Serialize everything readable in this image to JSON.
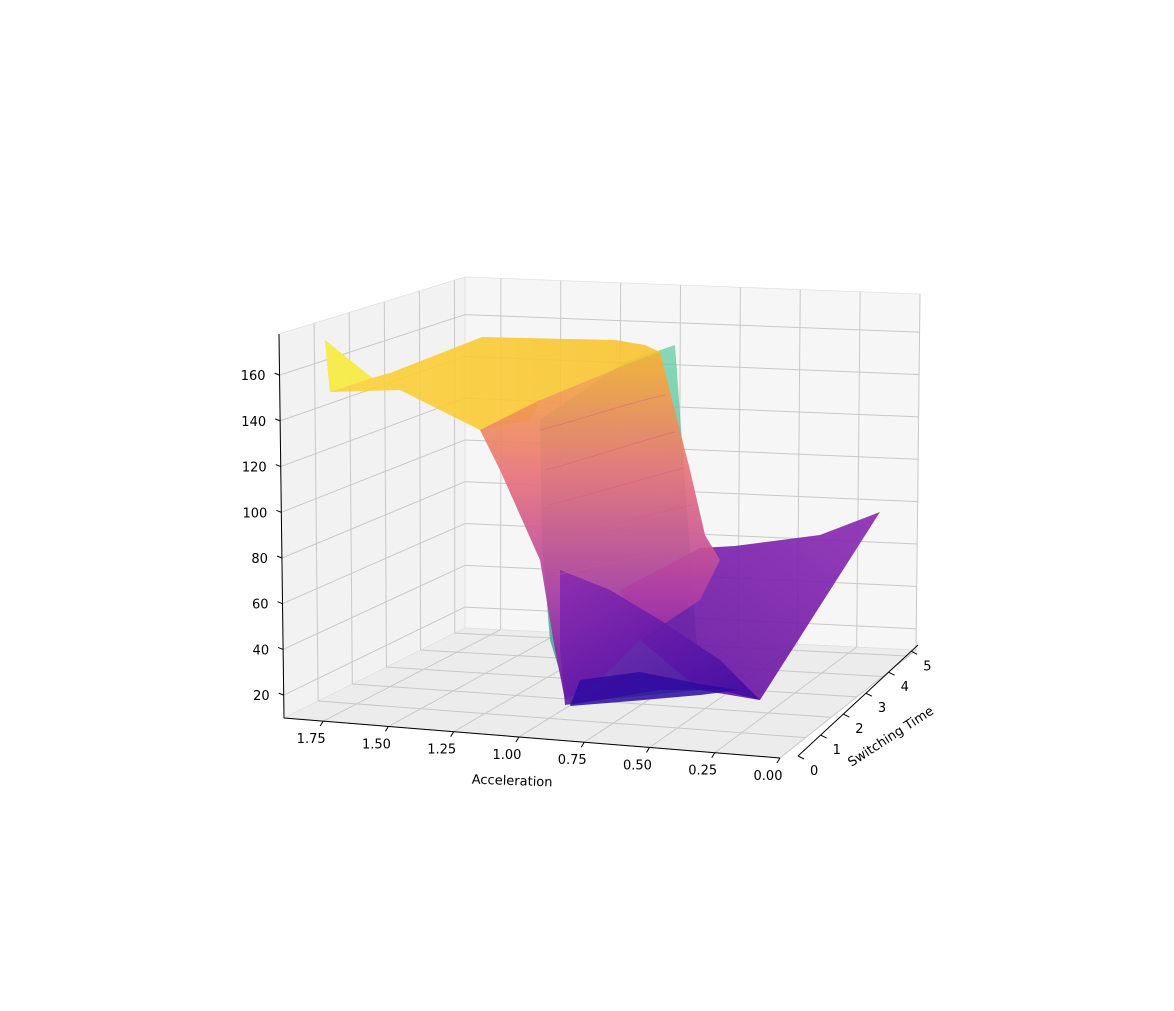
{
  "chart_data": {
    "type": "surface3d",
    "title": "",
    "xlabel": "Acceleration",
    "ylabel": "Switching Time",
    "zlabel": "",
    "x_ticks": [
      "0.00",
      "0.25",
      "0.50",
      "0.75",
      "1.00",
      "1.25",
      "1.50",
      "1.75"
    ],
    "y_ticks": [
      "0",
      "1",
      "2",
      "3",
      "4",
      "5"
    ],
    "z_ticks": [
      "20",
      "40",
      "60",
      "80",
      "100",
      "120",
      "140",
      "160"
    ],
    "xlim": [
      0.0,
      1.9
    ],
    "ylim": [
      0,
      5.3
    ],
    "zlim": [
      10,
      178
    ],
    "grid": true,
    "legend": "none",
    "colormaps": [
      "plasma",
      "viridis"
    ],
    "surfaces": [
      {
        "description": "main objective surface",
        "colormap": "plasma",
        "corner_values": {
          "acc_1.85_sw_0": 152,
          "acc_1.85_sw_5": 165,
          "acc_0.75_sw_0": 14,
          "acc_0.75_sw_5": 168,
          "acc_0.00_sw_0": 18,
          "acc_0.00_sw_5": 100
        },
        "plateau_value": 165,
        "min_value": 14
      },
      {
        "description": "secondary surface (step wall)",
        "colormap": "viridis",
        "high_value": 168,
        "low_value": 14
      }
    ]
  }
}
